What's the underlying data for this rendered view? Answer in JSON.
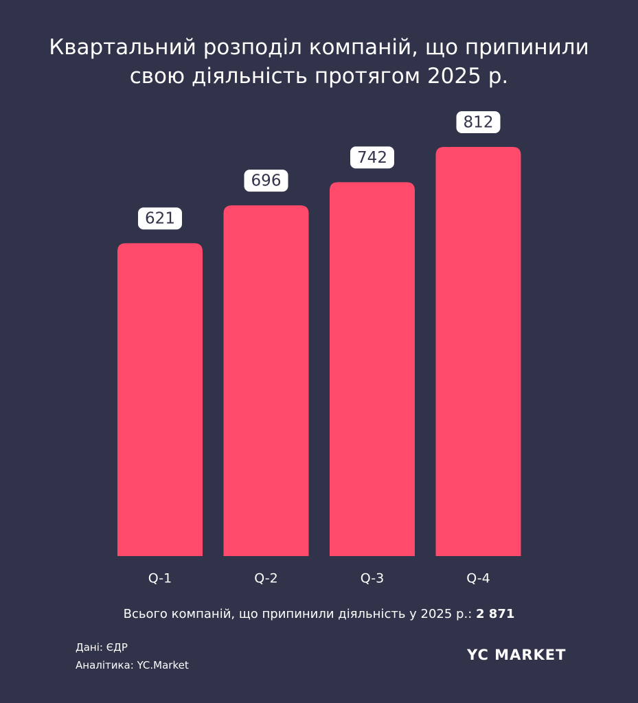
{
  "chart_data": {
    "type": "bar",
    "title": "Квартальний розподіл компаній, що припинили свою діяльність протягом 2025 р.",
    "categories": [
      "Q-1",
      "Q-2",
      "Q-3",
      "Q-4"
    ],
    "values": [
      621,
      696,
      742,
      812
    ],
    "color": "#ff4a6b",
    "total": {
      "text": "Всього компаній, що припинили діяльність у 2025 р.:",
      "value": 2871,
      "value_label": "2 871"
    },
    "source": "Дані: ЄДР",
    "analytics": "Аналітика: YC.Market",
    "logo": "YC MARKET"
  }
}
